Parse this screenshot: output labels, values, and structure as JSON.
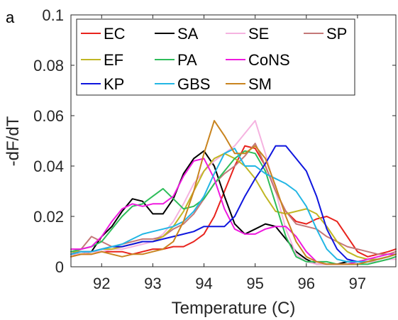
{
  "panel_label": "a",
  "chart_data": {
    "type": "line",
    "xlabel": "Temperature (C)",
    "ylabel": "-dF/dT",
    "xlim": [
      91.4,
      97.75
    ],
    "ylim": [
      0,
      0.1
    ],
    "xticks": [
      92,
      93,
      94,
      95,
      96,
      97
    ],
    "yticks": [
      0,
      0.02,
      0.04,
      0.06,
      0.08,
      0.1
    ],
    "ytick_labels": [
      "0",
      "0.02",
      "0.04",
      "0.06",
      "0.08",
      "0.1"
    ],
    "grid": false,
    "legend_position": "top",
    "x": [
      91.4,
      91.6,
      91.8,
      92.0,
      92.2,
      92.4,
      92.6,
      92.8,
      93.0,
      93.2,
      93.4,
      93.6,
      93.8,
      94.0,
      94.2,
      94.4,
      94.6,
      94.8,
      95.0,
      95.2,
      95.4,
      95.6,
      95.8,
      96.0,
      96.2,
      96.4,
      96.6,
      96.8,
      97.0,
      97.2,
      97.4,
      97.6,
      97.75
    ],
    "series": [
      {
        "name": "EC",
        "color": "#e8231d",
        "values": [
          0.004,
          0.005,
          0.005,
          0.006,
          0.006,
          0.006,
          0.005,
          0.006,
          0.007,
          0.007,
          0.008,
          0.008,
          0.01,
          0.013,
          0.02,
          0.03,
          0.04,
          0.048,
          0.047,
          0.04,
          0.03,
          0.022,
          0.018,
          0.017,
          0.019,
          0.02,
          0.018,
          0.012,
          0.006,
          0.004,
          0.005,
          0.006,
          0.007
        ]
      },
      {
        "name": "SA",
        "color": "#000000",
        "values": [
          0.005,
          0.005,
          0.006,
          0.012,
          0.016,
          0.022,
          0.027,
          0.026,
          0.021,
          0.021,
          0.027,
          0.037,
          0.043,
          0.046,
          0.04,
          0.028,
          0.017,
          0.013,
          0.015,
          0.017,
          0.016,
          0.011,
          0.006,
          0.003,
          0.001,
          0.001,
          0.001,
          0.002,
          0.002,
          0.002,
          0.003,
          0.004,
          0.005
        ]
      },
      {
        "name": "SE",
        "color": "#f5b3e0",
        "values": [
          0.005,
          0.005,
          0.006,
          0.006,
          0.007,
          0.007,
          0.008,
          0.009,
          0.01,
          0.013,
          0.018,
          0.025,
          0.033,
          0.038,
          0.042,
          0.045,
          0.048,
          0.053,
          0.058,
          0.045,
          0.03,
          0.015,
          0.005,
          0.002,
          0.001,
          0.001,
          0.001,
          0.001,
          0.001,
          0.002,
          0.002,
          0.003,
          0.003
        ]
      },
      {
        "name": "SP",
        "color": "#c47878",
        "values": [
          0.005,
          0.007,
          0.012,
          0.01,
          0.008,
          0.009,
          0.01,
          0.011,
          0.011,
          0.012,
          0.015,
          0.017,
          0.021,
          0.027,
          0.033,
          0.037,
          0.04,
          0.044,
          0.049,
          0.04,
          0.03,
          0.022,
          0.017,
          0.016,
          0.015,
          0.012,
          0.01,
          0.008,
          0.007,
          0.006,
          0.005,
          0.005,
          0.006
        ]
      },
      {
        "name": "EF",
        "color": "#c0b624",
        "values": [
          0.006,
          0.006,
          0.006,
          0.007,
          0.007,
          0.008,
          0.009,
          0.01,
          0.01,
          0.012,
          0.016,
          0.022,
          0.03,
          0.038,
          0.043,
          0.045,
          0.043,
          0.04,
          0.035,
          0.028,
          0.022,
          0.021,
          0.022,
          0.023,
          0.021,
          0.016,
          0.01,
          0.006,
          0.004,
          0.003,
          0.003,
          0.004,
          0.005
        ]
      },
      {
        "name": "PA",
        "color": "#2ebd5a",
        "values": [
          0.006,
          0.007,
          0.008,
          0.01,
          0.015,
          0.02,
          0.024,
          0.025,
          0.028,
          0.031,
          0.027,
          0.023,
          0.024,
          0.027,
          0.033,
          0.038,
          0.043,
          0.046,
          0.045,
          0.038,
          0.025,
          0.012,
          0.004,
          0.002,
          0.002,
          0.002,
          0.001,
          0.001,
          0.001,
          0.001,
          0.002,
          0.003,
          0.004
        ]
      },
      {
        "name": "CoNS",
        "color": "#ef1adf",
        "values": [
          0.007,
          0.007,
          0.008,
          0.012,
          0.018,
          0.023,
          0.025,
          0.024,
          0.025,
          0.025,
          0.028,
          0.036,
          0.042,
          0.043,
          0.035,
          0.023,
          0.015,
          0.013,
          0.013,
          0.015,
          0.016,
          0.016,
          0.012,
          0.006,
          0.002,
          0.001,
          0.001,
          0.001,
          0.002,
          0.003,
          0.004,
          0.005,
          0.005
        ]
      },
      {
        "name": "KP",
        "color": "#0f16de",
        "values": [
          0.005,
          0.006,
          0.006,
          0.007,
          0.008,
          0.008,
          0.009,
          0.01,
          0.01,
          0.011,
          0.012,
          0.013,
          0.014,
          0.016,
          0.016,
          0.016,
          0.02,
          0.028,
          0.035,
          0.041,
          0.048,
          0.048,
          0.043,
          0.038,
          0.028,
          0.015,
          0.007,
          0.003,
          0.002,
          0.002,
          0.003,
          0.004,
          0.005
        ]
      },
      {
        "name": "GBS",
        "color": "#22b6e4",
        "values": [
          0.005,
          0.006,
          0.006,
          0.007,
          0.008,
          0.009,
          0.011,
          0.013,
          0.014,
          0.015,
          0.016,
          0.018,
          0.022,
          0.028,
          0.037,
          0.045,
          0.047,
          0.04,
          0.04,
          0.037,
          0.035,
          0.033,
          0.03,
          0.024,
          0.015,
          0.007,
          0.003,
          0.002,
          0.002,
          0.002,
          0.003,
          0.004,
          0.005
        ]
      },
      {
        "name": "SM",
        "color": "#c9841f",
        "values": [
          0.004,
          0.005,
          0.005,
          0.006,
          0.005,
          0.004,
          0.005,
          0.005,
          0.006,
          0.007,
          0.01,
          0.018,
          0.03,
          0.045,
          0.058,
          0.052,
          0.045,
          0.045,
          0.048,
          0.043,
          0.032,
          0.02,
          0.01,
          0.004,
          0.002,
          0.001,
          0.001,
          0.001,
          0.001,
          0.002,
          0.003,
          0.004,
          0.005
        ]
      }
    ],
    "legend_order": [
      "EC",
      "SA",
      "SE",
      "SP",
      "EF",
      "PA",
      "CoNS",
      "KP",
      "GBS",
      "SM"
    ]
  }
}
